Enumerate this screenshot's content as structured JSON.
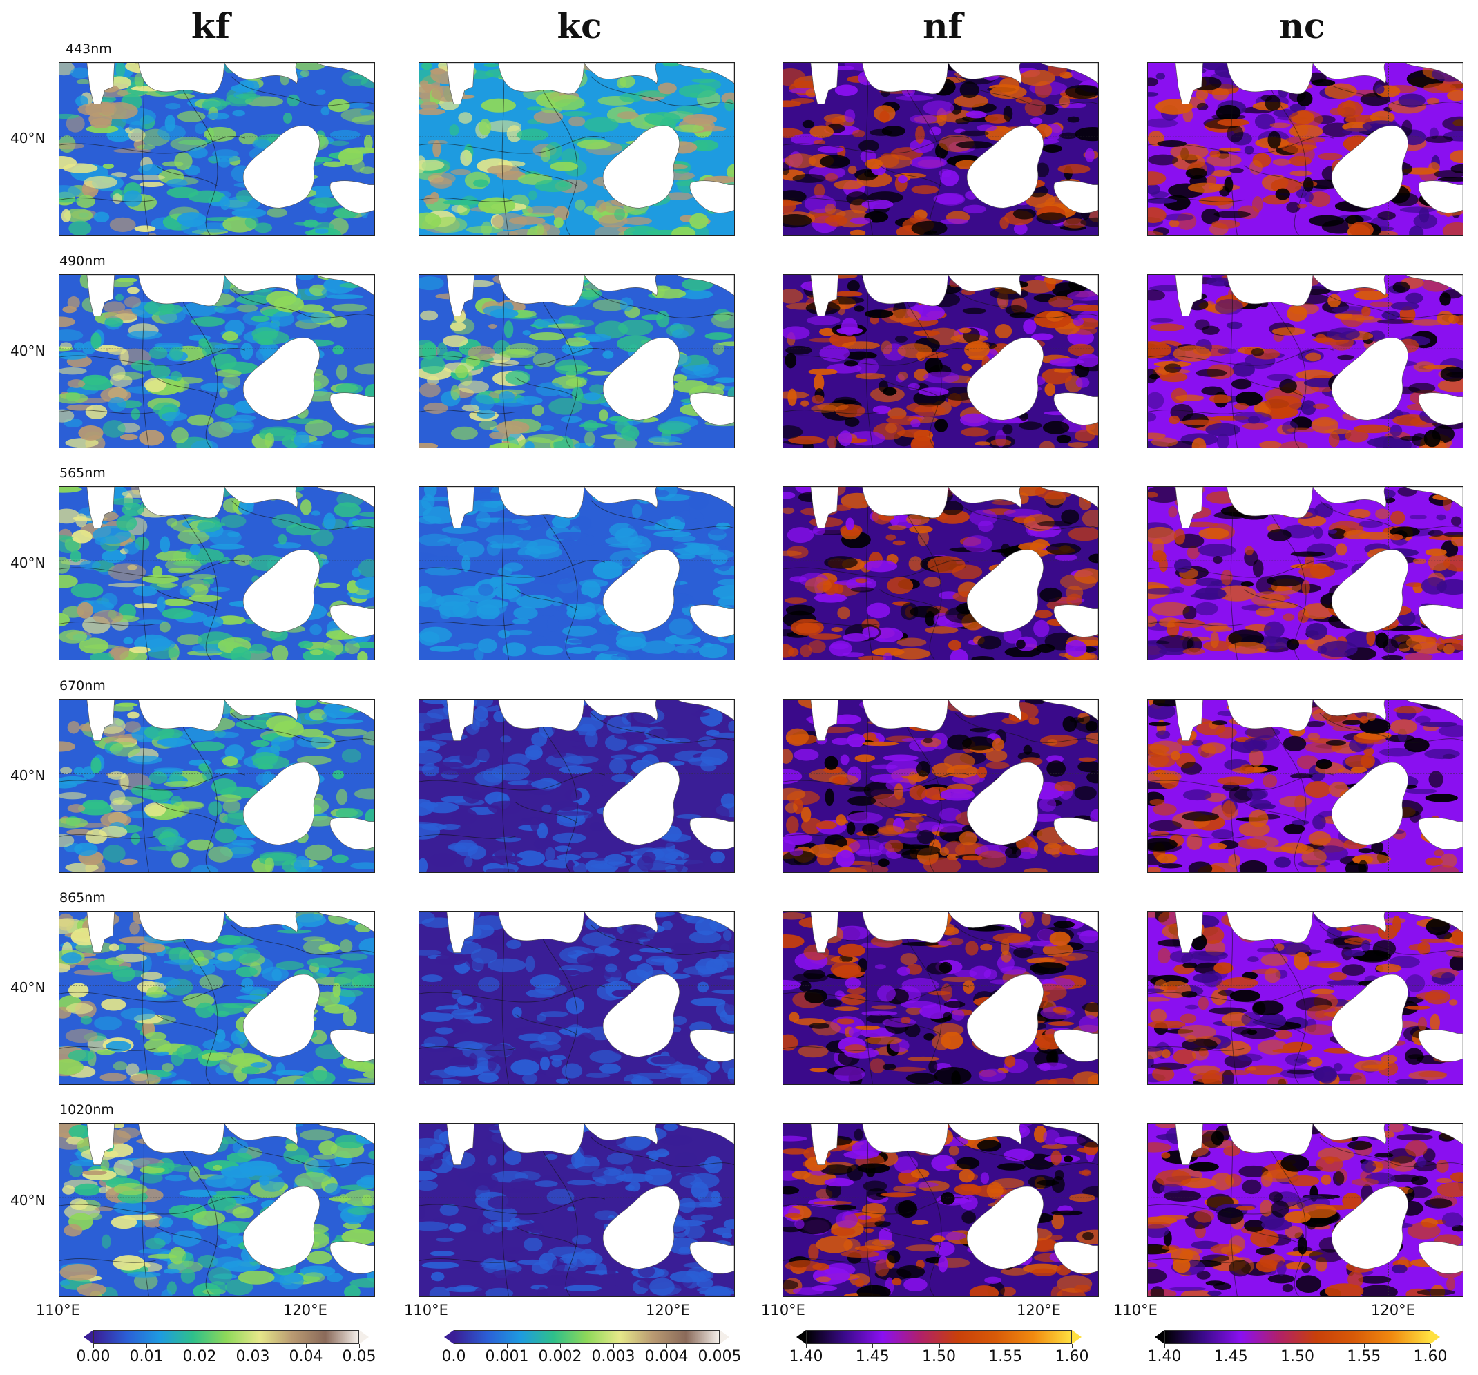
{
  "columns": [
    {
      "id": "kf",
      "title": "kf",
      "palette": "kf",
      "colorbar": {
        "ticks": [
          "0.00",
          "0.01",
          "0.02",
          "0.03",
          "0.04",
          "0.05"
        ],
        "range": [
          0.0,
          0.05
        ]
      }
    },
    {
      "id": "kc",
      "title": "kc",
      "palette": "kf",
      "colorbar": {
        "ticks": [
          "0.0",
          "0.001",
          "0.002",
          "0.003",
          "0.004",
          "0.005"
        ],
        "range": [
          0.0,
          0.005
        ]
      }
    },
    {
      "id": "nf",
      "title": "nf",
      "palette": "n",
      "colorbar": {
        "ticks": [
          "1.40",
          "1.45",
          "1.50",
          "1.55",
          "1.60"
        ],
        "range": [
          1.4,
          1.6
        ]
      }
    },
    {
      "id": "nc",
      "title": "nc",
      "palette": "n",
      "colorbar": {
        "ticks": [
          "1.40",
          "1.45",
          "1.50",
          "1.55",
          "1.60"
        ],
        "range": [
          1.4,
          1.6
        ]
      }
    }
  ],
  "rows": [
    {
      "wavelength": "443nm"
    },
    {
      "wavelength": "490nm"
    },
    {
      "wavelength": "565nm"
    },
    {
      "wavelength": "670nm"
    },
    {
      "wavelength": "865nm"
    },
    {
      "wavelength": "1020nm"
    }
  ],
  "axes": {
    "lat_label": "40°N",
    "lon_labels": [
      "110°E",
      "120°E"
    ]
  },
  "palettes": {
    "kf": [
      "#3a1e96",
      "#2b5fd6",
      "#1e9be0",
      "#2fc08a",
      "#8ed85a",
      "#e6e88a",
      "#b99a72",
      "#8a6a5a",
      "#f4efea"
    ],
    "n": [
      "#000000",
      "#3a0a8a",
      "#8a10f0",
      "#b0206a",
      "#c8400a",
      "#d85a08",
      "#f08a10",
      "#ffe040"
    ]
  }
}
